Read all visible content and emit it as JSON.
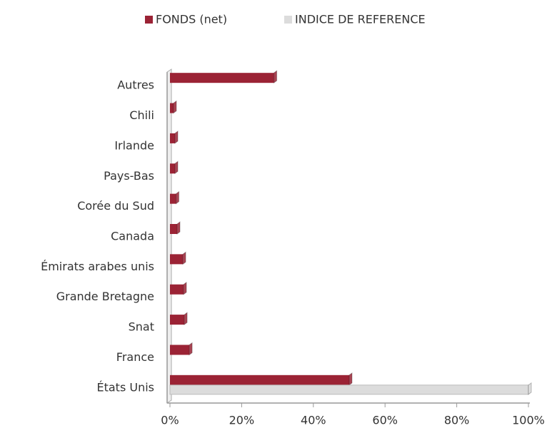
{
  "chart_data": {
    "type": "bar",
    "orientation": "horizontal",
    "categories": [
      "Autres",
      "Chili",
      "Irlande",
      "Pays-Bas",
      "Corée du Sud",
      "Canada",
      "Émirats arabes unis",
      "Grande Bretagne",
      "Snat",
      "France",
      "États Unis"
    ],
    "series": [
      {
        "name": "FONDS (net)",
        "color": "#9b2335",
        "values": [
          29,
          1,
          1.4,
          1.4,
          1.7,
          2,
          3.6,
          3.8,
          4,
          5.4,
          50
        ]
      },
      {
        "name": "INDICE DE REFERENCE",
        "color": "#dcdcdc",
        "values": [
          0,
          0,
          0,
          0,
          0,
          0,
          0,
          0,
          0,
          0,
          100
        ]
      }
    ],
    "xlim": [
      0,
      100
    ],
    "xticks": [
      {
        "value": 0,
        "label": "0%"
      },
      {
        "value": 20,
        "label": "20%"
      },
      {
        "value": 40,
        "label": "40%"
      },
      {
        "value": 60,
        "label": "60%"
      },
      {
        "value": 80,
        "label": "80%"
      },
      {
        "value": 100,
        "label": "100%"
      }
    ],
    "legend": "top"
  }
}
